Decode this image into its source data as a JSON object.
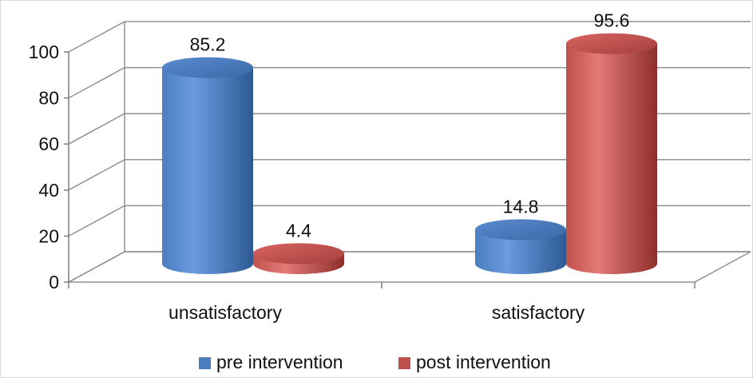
{
  "chart_data": {
    "type": "bar",
    "title": "",
    "xlabel": "",
    "ylabel": "",
    "categories": [
      "unsatisfactory",
      "satisfactory"
    ],
    "series": [
      {
        "name": "pre intervention",
        "values": [
          85.2,
          14.8
        ],
        "color": "#4a7ebf"
      },
      {
        "name": "post intervention",
        "values": [
          4.4,
          95.6
        ],
        "color": "#c0504d"
      }
    ],
    "ylim": [
      0,
      100
    ],
    "yticks": [
      0,
      20,
      40,
      60,
      80,
      100
    ],
    "data_labels": [
      "85.2",
      "4.4",
      "14.8",
      "95.6"
    ],
    "grid": true,
    "legend_position": "bottom",
    "style": "3d-cylinder"
  }
}
